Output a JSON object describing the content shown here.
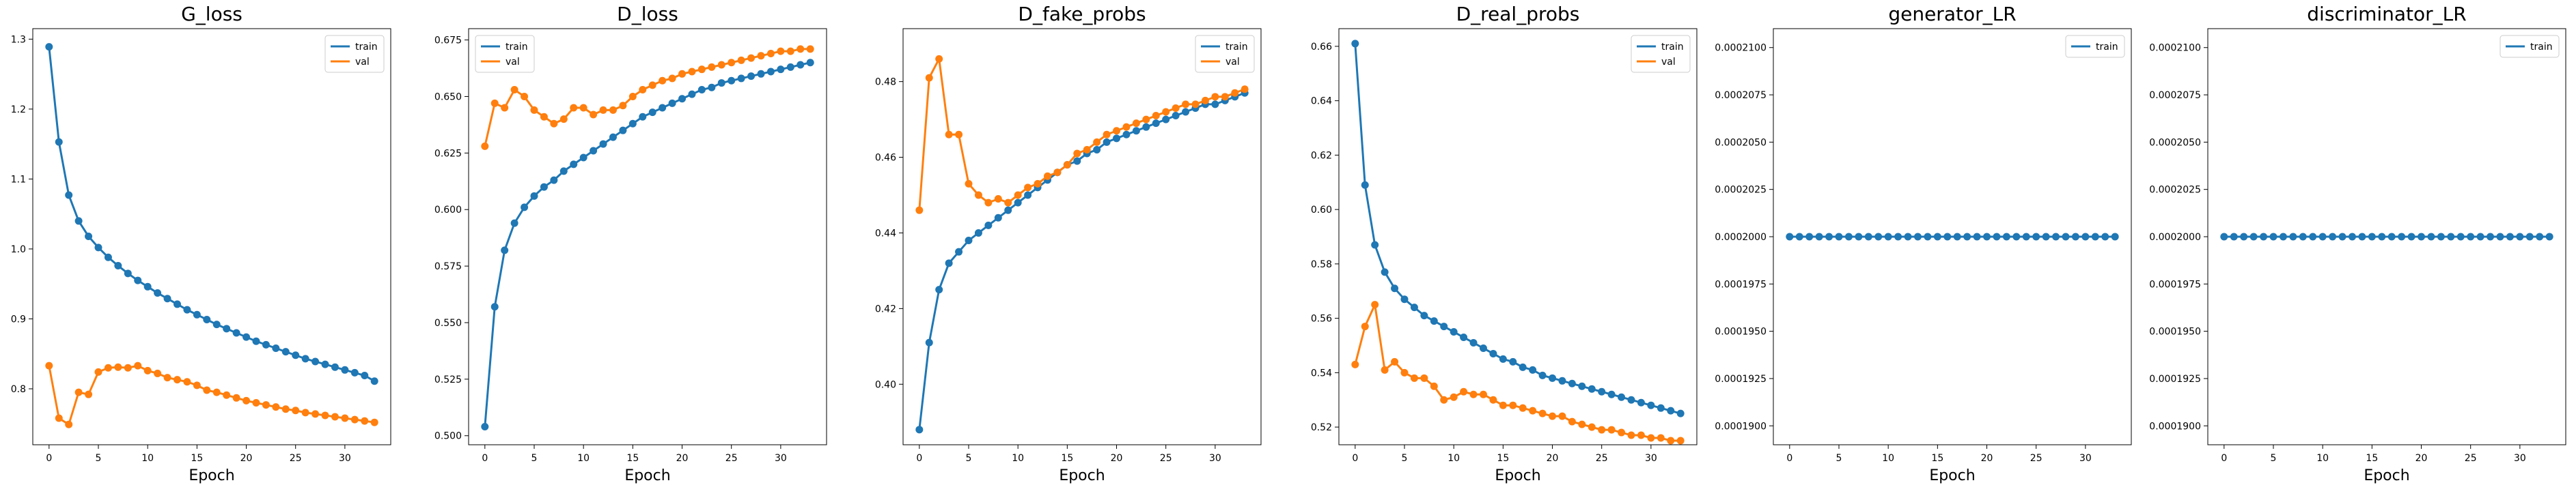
{
  "colors": {
    "train": "#1f77b4",
    "val": "#ff7f0e"
  },
  "chart_data": [
    {
      "type": "line",
      "title": "G_loss",
      "xlabel": "Epoch",
      "xlim": [
        -1.65,
        34.65
      ],
      "ylim": [
        0.72,
        1.315
      ],
      "xticks": [
        0,
        5,
        10,
        15,
        20,
        25,
        30
      ],
      "yticks": [
        0.8,
        0.9,
        1.0,
        1.1,
        1.2,
        1.3
      ],
      "ytick_labels": [
        "0.8",
        "0.9",
        "1.0",
        "1.1",
        "1.2",
        "1.3"
      ],
      "legend": "top-right",
      "series": [
        {
          "name": "train",
          "color": "#1f77b4",
          "values": [
            1.289,
            1.153,
            1.077,
            1.04,
            1.018,
            1.002,
            0.988,
            0.976,
            0.965,
            0.955,
            0.946,
            0.937,
            0.929,
            0.921,
            0.913,
            0.906,
            0.899,
            0.892,
            0.886,
            0.88,
            0.874,
            0.868,
            0.863,
            0.858,
            0.853,
            0.848,
            0.843,
            0.839,
            0.835,
            0.831,
            0.827,
            0.823,
            0.819,
            0.811
          ]
        },
        {
          "name": "val",
          "color": "#ff7f0e",
          "values": [
            0.833,
            0.758,
            0.749,
            0.795,
            0.792,
            0.824,
            0.83,
            0.831,
            0.83,
            0.833,
            0.826,
            0.822,
            0.816,
            0.813,
            0.81,
            0.805,
            0.798,
            0.795,
            0.791,
            0.787,
            0.783,
            0.78,
            0.777,
            0.774,
            0.771,
            0.769,
            0.766,
            0.764,
            0.762,
            0.76,
            0.758,
            0.756,
            0.754,
            0.752
          ]
        }
      ]
    },
    {
      "type": "line",
      "title": "D_loss",
      "xlabel": "Epoch",
      "xlim": [
        -1.65,
        34.65
      ],
      "ylim": [
        0.496,
        0.68
      ],
      "xticks": [
        0,
        5,
        10,
        15,
        20,
        25,
        30
      ],
      "yticks": [
        0.5,
        0.525,
        0.55,
        0.575,
        0.6,
        0.625,
        0.65,
        0.675
      ],
      "ytick_labels": [
        "0.500",
        "0.525",
        "0.550",
        "0.575",
        "0.600",
        "0.625",
        "0.650",
        "0.675"
      ],
      "legend": "top-left",
      "series": [
        {
          "name": "train",
          "color": "#1f77b4",
          "values": [
            0.504,
            0.557,
            0.582,
            0.594,
            0.601,
            0.606,
            0.61,
            0.613,
            0.617,
            0.62,
            0.623,
            0.626,
            0.629,
            0.632,
            0.635,
            0.638,
            0.641,
            0.643,
            0.645,
            0.647,
            0.649,
            0.651,
            0.653,
            0.654,
            0.656,
            0.657,
            0.658,
            0.659,
            0.66,
            0.661,
            0.662,
            0.663,
            0.664,
            0.665
          ]
        },
        {
          "name": "val",
          "color": "#ff7f0e",
          "values": [
            0.628,
            0.647,
            0.645,
            0.653,
            0.65,
            0.644,
            0.641,
            0.638,
            0.64,
            0.645,
            0.645,
            0.642,
            0.644,
            0.644,
            0.646,
            0.65,
            0.653,
            0.655,
            0.657,
            0.658,
            0.66,
            0.661,
            0.662,
            0.663,
            0.664,
            0.665,
            0.666,
            0.667,
            0.668,
            0.669,
            0.67,
            0.67,
            0.671,
            0.671
          ]
        }
      ]
    },
    {
      "type": "line",
      "title": "D_fake_probs",
      "xlabel": "Epoch",
      "xlim": [
        -1.65,
        34.65
      ],
      "ylim": [
        0.384,
        0.494
      ],
      "xticks": [
        0,
        5,
        10,
        15,
        20,
        25,
        30
      ],
      "yticks": [
        0.4,
        0.42,
        0.44,
        0.46,
        0.48
      ],
      "ytick_labels": [
        "0.40",
        "0.42",
        "0.44",
        "0.46",
        "0.48"
      ],
      "legend": "top-right",
      "series": [
        {
          "name": "train",
          "color": "#1f77b4",
          "values": [
            0.388,
            0.411,
            0.425,
            0.432,
            0.435,
            0.438,
            0.44,
            0.442,
            0.444,
            0.446,
            0.448,
            0.45,
            0.452,
            0.454,
            0.456,
            0.458,
            0.459,
            0.461,
            0.462,
            0.464,
            0.465,
            0.466,
            0.467,
            0.468,
            0.469,
            0.47,
            0.471,
            0.472,
            0.473,
            0.474,
            0.474,
            0.475,
            0.476,
            0.477
          ]
        },
        {
          "name": "val",
          "color": "#ff7f0e",
          "values": [
            0.446,
            0.481,
            0.486,
            0.466,
            0.466,
            0.453,
            0.45,
            0.448,
            0.449,
            0.448,
            0.45,
            0.452,
            0.453,
            0.455,
            0.456,
            0.458,
            0.461,
            0.462,
            0.464,
            0.466,
            0.467,
            0.468,
            0.469,
            0.47,
            0.471,
            0.472,
            0.473,
            0.474,
            0.474,
            0.475,
            0.476,
            0.476,
            0.477,
            0.478
          ]
        }
      ]
    },
    {
      "type": "line",
      "title": "D_real_probs",
      "xlabel": "Epoch",
      "xlim": [
        -1.65,
        34.65
      ],
      "ylim": [
        0.5135,
        0.6665
      ],
      "xticks": [
        0,
        5,
        10,
        15,
        20,
        25,
        30
      ],
      "yticks": [
        0.52,
        0.54,
        0.56,
        0.58,
        0.6,
        0.62,
        0.64,
        0.66
      ],
      "ytick_labels": [
        "0.52",
        "0.54",
        "0.56",
        "0.58",
        "0.60",
        "0.62",
        "0.64",
        "0.66"
      ],
      "legend": "top-right",
      "series": [
        {
          "name": "train",
          "color": "#1f77b4",
          "values": [
            0.661,
            0.609,
            0.587,
            0.577,
            0.571,
            0.567,
            0.564,
            0.561,
            0.559,
            0.557,
            0.555,
            0.553,
            0.551,
            0.549,
            0.547,
            0.545,
            0.544,
            0.542,
            0.541,
            0.539,
            0.538,
            0.537,
            0.536,
            0.535,
            0.534,
            0.533,
            0.532,
            0.531,
            0.53,
            0.529,
            0.528,
            0.527,
            0.526,
            0.525
          ]
        },
        {
          "name": "val",
          "color": "#ff7f0e",
          "values": [
            0.543,
            0.557,
            0.565,
            0.541,
            0.544,
            0.54,
            0.538,
            0.538,
            0.535,
            0.53,
            0.531,
            0.533,
            0.532,
            0.532,
            0.53,
            0.528,
            0.528,
            0.527,
            0.526,
            0.525,
            0.524,
            0.524,
            0.522,
            0.521,
            0.52,
            0.519,
            0.519,
            0.518,
            0.517,
            0.517,
            0.516,
            0.516,
            0.515,
            0.515
          ]
        }
      ]
    },
    {
      "type": "line",
      "title": "generator_LR",
      "xlabel": "Epoch",
      "xlim": [
        -1.65,
        34.65
      ],
      "ylim": [
        0.000189,
        0.000211
      ],
      "xticks": [
        0,
        5,
        10,
        15,
        20,
        25,
        30
      ],
      "yticks": [
        0.00019,
        0.0001925,
        0.000195,
        0.0001975,
        0.0002,
        0.0002025,
        0.000205,
        0.0002075,
        0.00021
      ],
      "ytick_labels": [
        "0.0001900",
        "0.0001925",
        "0.0001950",
        "0.0001975",
        "0.0002000",
        "0.0002025",
        "0.0002050",
        "0.0002075",
        "0.0002100"
      ],
      "legend": "top-right",
      "series": [
        {
          "name": "train",
          "color": "#1f77b4",
          "values": [
            0.0002,
            0.0002,
            0.0002,
            0.0002,
            0.0002,
            0.0002,
            0.0002,
            0.0002,
            0.0002,
            0.0002,
            0.0002,
            0.0002,
            0.0002,
            0.0002,
            0.0002,
            0.0002,
            0.0002,
            0.0002,
            0.0002,
            0.0002,
            0.0002,
            0.0002,
            0.0002,
            0.0002,
            0.0002,
            0.0002,
            0.0002,
            0.0002,
            0.0002,
            0.0002,
            0.0002,
            0.0002,
            0.0002,
            0.0002
          ]
        }
      ]
    },
    {
      "type": "line",
      "title": "discriminator_LR",
      "xlabel": "Epoch",
      "xlim": [
        -1.65,
        34.65
      ],
      "ylim": [
        0.000189,
        0.000211
      ],
      "xticks": [
        0,
        5,
        10,
        15,
        20,
        25,
        30
      ],
      "yticks": [
        0.00019,
        0.0001925,
        0.000195,
        0.0001975,
        0.0002,
        0.0002025,
        0.000205,
        0.0002075,
        0.00021
      ],
      "ytick_labels": [
        "0.0001900",
        "0.0001925",
        "0.0001950",
        "0.0001975",
        "0.0002000",
        "0.0002025",
        "0.0002050",
        "0.0002075",
        "0.0002100"
      ],
      "legend": "top-right",
      "series": [
        {
          "name": "train",
          "color": "#1f77b4",
          "values": [
            0.0002,
            0.0002,
            0.0002,
            0.0002,
            0.0002,
            0.0002,
            0.0002,
            0.0002,
            0.0002,
            0.0002,
            0.0002,
            0.0002,
            0.0002,
            0.0002,
            0.0002,
            0.0002,
            0.0002,
            0.0002,
            0.0002,
            0.0002,
            0.0002,
            0.0002,
            0.0002,
            0.0002,
            0.0002,
            0.0002,
            0.0002,
            0.0002,
            0.0002,
            0.0002,
            0.0002,
            0.0002,
            0.0002,
            0.0002
          ]
        }
      ]
    }
  ]
}
